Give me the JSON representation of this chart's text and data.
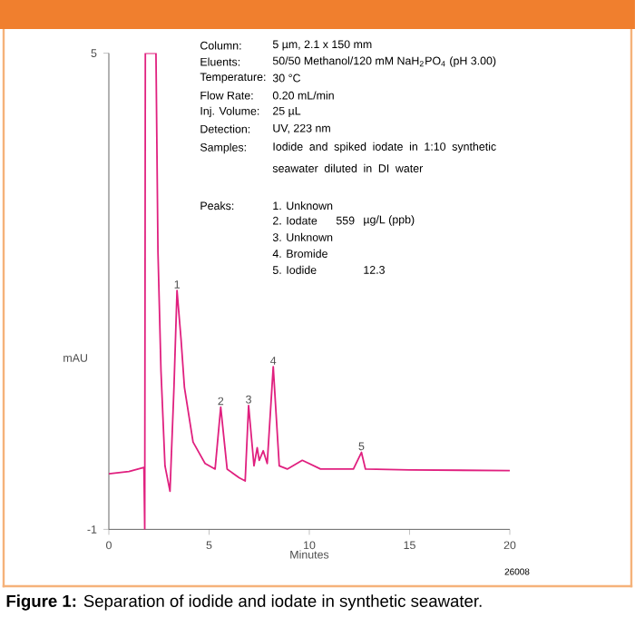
{
  "chart_data": {
    "type": "line",
    "title": "**Figure 1:** Separation of iodide and iodate in synthetic seawater.",
    "xlabel": "Minutes",
    "ylabel": "mAU",
    "xlim": [
      0,
      20
    ],
    "xticks": [
      0,
      5,
      10,
      15,
      20
    ],
    "ylim": [
      -1,
      5
    ],
    "yticks": [
      -1,
      5
    ],
    "series": [
      {
        "color": "#e0207f",
        "x": [
          0,
          1,
          1.75,
          1.79,
          1.82,
          2.35,
          2.45,
          2.6,
          2.8,
          3.05,
          3.25,
          3.4,
          3.6,
          3.77,
          4.2,
          4.8,
          5.3,
          5.58,
          5.9,
          6.5,
          6.8,
          6.97,
          7.24,
          7.4,
          7.5,
          7.7,
          7.9,
          8.2,
          8.5,
          8.9,
          9.65,
          10.56,
          12.2,
          12.6,
          12.8,
          15,
          20
        ],
        "values": [
          -0.3,
          -0.27,
          -0.22,
          -1,
          5,
          5,
          2.5,
          1.0,
          -0.2,
          -0.52,
          0.8,
          2.01,
          1.4,
          0.79,
          0.1,
          -0.17,
          -0.24,
          0.54,
          -0.24,
          -0.35,
          -0.39,
          0.56,
          -0.2,
          0.03,
          -0.13,
          -0.01,
          -0.17,
          1.05,
          -0.2,
          -0.24,
          -0.13,
          -0.24,
          -0.24,
          -0.03,
          -0.24,
          -0.25,
          -0.26
        ]
      }
    ],
    "annotations": [
      "Column:",
      "5 µm, 2.1 x 150 mm",
      "Eluents:",
      "50/50 Methanol/120 mM NaH$_{2}$PO$_{4}$ (pH 3.00)",
      "Temperature:",
      "30 °C",
      "Flow Rate:",
      "0.20 mL/min",
      "Inj. Volume:",
      "25 µL",
      "Detection:",
      "UV, 223 nm",
      "Samples:",
      "Iodide and spiked iodate in 1:10 synthetic seawater diluted in DI water",
      "Peaks:",
      "1. Unknown",
      "2. Iodate",
      "559",
      "µg/L (ppb)",
      "3. Unknown",
      "4. Bromide",
      "5. Iodide",
      "12.3",
      "26008",
      {
        "text": "1",
        "x": 3.4,
        "y": 2.01
      },
      {
        "text": "2",
        "x": 5.58,
        "y": 0.54
      },
      {
        "text": "3",
        "x": 6.97,
        "y": 0.56
      },
      {
        "text": "4",
        "x": 8.2,
        "y": 1.05
      },
      {
        "text": "5",
        "x": 12.6,
        "y": -0.03
      }
    ]
  }
}
